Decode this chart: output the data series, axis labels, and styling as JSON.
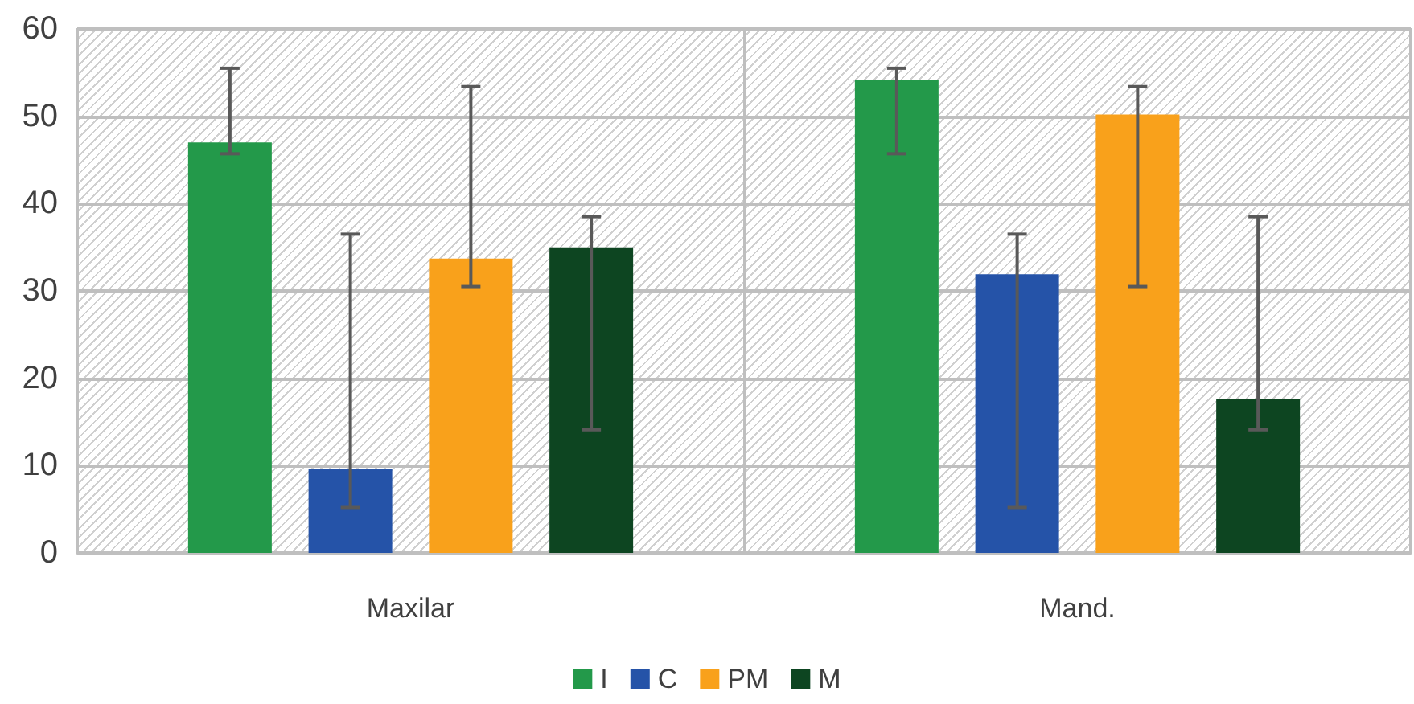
{
  "chart_data": {
    "type": "bar",
    "categories": [
      "Maxilar",
      "Mand."
    ],
    "series": [
      {
        "name": "I",
        "color": "#23994a",
        "values": [
          47.0,
          54.1
        ],
        "errors": [
          [
            45.7,
            55.5
          ],
          [
            45.7,
            55.5
          ]
        ]
      },
      {
        "name": "C",
        "color": "#2553a8",
        "values": [
          9.6,
          31.9
        ],
        "errors": [
          [
            5.2,
            36.5
          ],
          [
            5.2,
            36.5
          ]
        ]
      },
      {
        "name": "PM",
        "color": "#f9a11b",
        "values": [
          33.7,
          50.2
        ],
        "errors": [
          [
            30.5,
            53.4
          ],
          [
            30.5,
            53.4
          ]
        ]
      },
      {
        "name": "M",
        "color": "#0d4521",
        "values": [
          35.0,
          17.6
        ],
        "errors": [
          [
            14.1,
            38.5
          ],
          [
            14.1,
            38.5
          ]
        ]
      }
    ],
    "ylim": [
      0,
      60
    ],
    "yticks": [
      0,
      10,
      20,
      30,
      40,
      50,
      60
    ],
    "grid": true,
    "legend": "bottom"
  }
}
